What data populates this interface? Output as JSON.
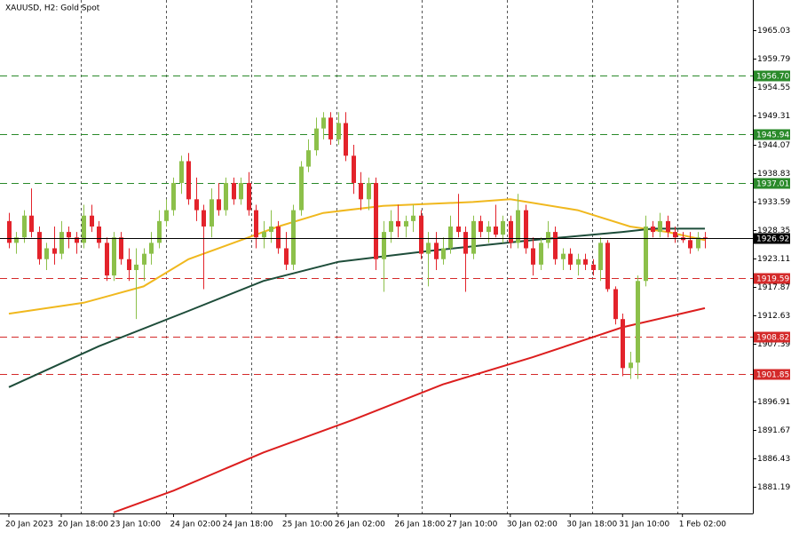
{
  "chart_data": {
    "type": "candlestick",
    "title": "XAUUSD, H2:  Gold Spot",
    "categories": [
      "20 Jan 2023",
      null,
      null,
      null,
      null,
      null,
      null,
      "20 Jan 18:00",
      null,
      null,
      null,
      null,
      null,
      null,
      "23 Jan 10:00",
      null,
      null,
      null,
      null,
      null,
      null,
      null,
      "24 Jan 02:00",
      null,
      null,
      null,
      null,
      null,
      null,
      "24 Jan 18:00",
      null,
      null,
      null,
      null,
      null,
      null,
      null,
      "25 Jan 10:00",
      null,
      null,
      null,
      null,
      null,
      null,
      "26 Jan 02:00",
      null,
      null,
      null,
      null,
      null,
      null,
      null,
      "26 Jan 18:00",
      null,
      null,
      null,
      null,
      null,
      null,
      "27 Jan 10:00",
      null,
      null,
      null,
      null,
      null,
      null,
      null,
      "30 Jan 02:00",
      null,
      null,
      null,
      null,
      null,
      null,
      null,
      "30 Jan 18:00",
      null,
      null,
      null,
      null,
      null,
      null,
      "31 Jan 10:00",
      null,
      null,
      null,
      null,
      null,
      null,
      null,
      "1 Feb 02:00",
      null,
      null,
      null
    ],
    "open": [
      1930,
      1926,
      1927,
      1931,
      1928,
      1923,
      1925,
      1924,
      1928,
      1927,
      1926,
      1931,
      1929,
      1926,
      1920,
      1927,
      1923,
      1921,
      1922,
      1924,
      1926,
      1930,
      1932,
      1937,
      1941,
      1934,
      1932,
      1929,
      1934,
      1932,
      1937,
      1934,
      1937,
      1932,
      1927,
      1928,
      1929,
      1925,
      1922,
      1932,
      1940,
      1943,
      1947,
      1949,
      1945,
      1948,
      1942,
      1937,
      1934,
      1937,
      1923,
      1928,
      1930,
      1929,
      1930,
      1931,
      1924,
      1926,
      1923,
      1925,
      1929,
      1928,
      1924,
      1930,
      1928,
      1929,
      1927.5,
      1930,
      1926,
      1932,
      1925,
      1922,
      1926,
      1928,
      1923,
      1924,
      1922,
      1923,
      1922,
      1921,
      1926,
      1917.5,
      1912,
      1903,
      1904,
      1919,
      1929,
      1928,
      1930,
      1928,
      1927,
      1926.5,
      1925,
      1927
    ],
    "high": [
      1931.5,
      1928,
      1932,
      1936,
      1929,
      1926,
      1929,
      1930,
      1929,
      1928,
      1933,
      1933,
      1930,
      1927,
      1928,
      1928,
      1925,
      1925,
      1925,
      1928,
      1932,
      1934,
      1938,
      1942,
      1942.5,
      1938,
      1933,
      1936,
      1937,
      1938,
      1938,
      1938,
      1939,
      1933,
      1930,
      1932,
      1930,
      1928,
      1933,
      1941,
      1945,
      1949,
      1950,
      1950,
      1950,
      1950,
      1944,
      1939,
      1938,
      1938,
      1930,
      1932,
      1933,
      1931,
      1933,
      1932,
      1928,
      1928,
      1927,
      1931,
      1935,
      1929,
      1931,
      1931,
      1930,
      1933,
      1931,
      1931,
      1935,
      1933,
      1927,
      1927,
      1930,
      1929,
      1925,
      1925,
      1924,
      1924,
      1923,
      1927,
      1926.5,
      1918,
      1913,
      1906,
      1920,
      1931,
      1930,
      1931.5,
      1931,
      1929,
      1928,
      1928,
      1928,
      1928
    ],
    "low": [
      1925,
      1924,
      1926,
      1927,
      1922,
      1921,
      1922,
      1923,
      1925,
      1924,
      1925,
      1928,
      1925,
      1919,
      1919,
      1922,
      1919,
      1912,
      1919,
      1922,
      1925,
      1929,
      1931,
      1935,
      1933,
      1930,
      1917.5,
      1927,
      1931,
      1931,
      1933,
      1933,
      1931,
      1925,
      1925,
      1926,
      1924,
      1921,
      1921,
      1931,
      1939,
      1942,
      1945,
      1944,
      1944,
      1941,
      1935,
      1932,
      1932,
      1921,
      1917,
      1926,
      1927,
      1927,
      1928,
      1923,
      1918,
      1921,
      1922,
      1924,
      1927,
      1917,
      1923,
      1927,
      1926,
      1927,
      1926,
      1925,
      1925,
      1924,
      1920,
      1921,
      1925,
      1922,
      1921,
      1921,
      1920,
      1921,
      1920,
      1919,
      1917,
      1911,
      1901.5,
      1901,
      1901,
      1918,
      1927,
      1927,
      1927,
      1926,
      1926,
      1924,
      1924.5,
      1925
    ],
    "close": [
      1926,
      1927,
      1931,
      1928,
      1923,
      1925,
      1924,
      1928,
      1927,
      1926,
      1931,
      1929,
      1926,
      1920,
      1927,
      1923,
      1921,
      1922,
      1924,
      1926,
      1930,
      1932,
      1937,
      1941,
      1934,
      1932,
      1929,
      1934,
      1932,
      1937,
      1934,
      1937,
      1932,
      1927,
      1928,
      1929,
      1925,
      1922,
      1932,
      1940,
      1943,
      1947,
      1949,
      1945,
      1948,
      1942,
      1937,
      1934,
      1937,
      1923,
      1928,
      1930,
      1929,
      1930,
      1931,
      1924,
      1926,
      1923,
      1925,
      1929,
      1928,
      1924,
      1930,
      1928,
      1929,
      1927.5,
      1930,
      1926,
      1932,
      1925,
      1922,
      1926,
      1928,
      1923,
      1924,
      1922,
      1923,
      1922,
      1921,
      1926,
      1917.5,
      1912,
      1903,
      1904,
      1919,
      1929,
      1928,
      1930,
      1928,
      1927,
      1926.5,
      1925,
      1927,
      1926.92
    ],
    "up_color": "#8cc04a",
    "down_color": "#e3232b",
    "lines": [
      {
        "color": "#f0b81e",
        "x": [
          0,
          10,
          18,
          24,
          30,
          36,
          42,
          50,
          62,
          67,
          76,
          83,
          88,
          93
        ],
        "values": [
          1913,
          1915,
          1918,
          1923,
          1926,
          1929,
          1931.5,
          1932.8,
          1933.5,
          1934,
          1932,
          1929,
          1928,
          1926.5
        ]
      },
      {
        "color": "#1e4d3a",
        "x": [
          0,
          12,
          24,
          34,
          44,
          56,
          70,
          82,
          86,
          93
        ],
        "values": [
          1899.5,
          1907,
          1913.5,
          1919,
          1922.5,
          1924.5,
          1926.5,
          1928,
          1928.6,
          1928.6
        ]
      },
      {
        "color": "#dc1e1e",
        "x": [
          14,
          22,
          34,
          46,
          58,
          70,
          82,
          93
        ],
        "values": [
          1876.5,
          1880.5,
          1887.5,
          1893.5,
          1900,
          1905,
          1910.5,
          1914
        ]
      }
    ],
    "levels": [
      {
        "value": 1956.7,
        "label": "1956.70"
      },
      1945.94,
      1937.01,
      1919.59,
      1908.82,
      1901.85
    ],
    "level_colors": [
      "#2a8a2a",
      "#2a8a2a",
      "#2a8a2a",
      "#d42a2a",
      "#d42a2a",
      "#d42a2a"
    ],
    "current_price": 1926.92,
    "ylim": [
      1876.3,
      1970.6
    ],
    "yticks": [
      1965.03,
      1959.79,
      1954.55,
      1949.31,
      1944.07,
      1938.83,
      1933.59,
      1928.35,
      1923.11,
      1917.87,
      1912.63,
      1907.39,
      1896.91,
      1891.67,
      1886.43,
      1881.19
    ]
  }
}
